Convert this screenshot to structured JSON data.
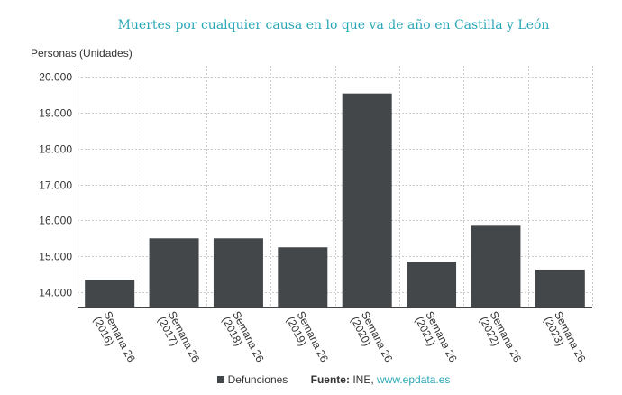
{
  "chart_data": {
    "type": "bar",
    "title": "Muertes por cualquier causa en lo que va de año en Castilla y León",
    "ylabel": "Personas (Unidades)",
    "xlabel": "",
    "categories": [
      "Semana 26 (2016)",
      "Semana 26 (2017)",
      "Semana 26 (2018)",
      "Semana 26 (2019)",
      "Semana 26 (2020)",
      "Semana 26 (2021)",
      "Semana 26 (2022)",
      "Semana 26 (2023)"
    ],
    "category_lines": [
      [
        "Semana 26",
        "(2016)"
      ],
      [
        "Semana 26",
        "(2017)"
      ],
      [
        "Semana 26",
        "(2018)"
      ],
      [
        "Semana 26",
        "(2019)"
      ],
      [
        "Semana 26",
        "(2020)"
      ],
      [
        "Semana 26",
        "(2021)"
      ],
      [
        "Semana 26",
        "(2022)"
      ],
      [
        "Semana 26",
        "(2023)"
      ]
    ],
    "series": [
      {
        "name": "Defunciones",
        "values": [
          14350,
          15500,
          15500,
          15250,
          19530,
          14850,
          15850,
          14630
        ]
      }
    ],
    "ylim": [
      13600,
      20300
    ],
    "yticks": [
      14000,
      15000,
      16000,
      17000,
      18000,
      19000,
      20000
    ],
    "ytick_labels": [
      "14.000",
      "15.000",
      "16.000",
      "17.000",
      "18.000",
      "19.000",
      "20.000"
    ],
    "grid": true,
    "legend_position": "bottom",
    "colors": {
      "bar": "#44474a",
      "title": "#2aa7b6",
      "grid": "#cccccc"
    }
  },
  "footer": {
    "legend_label": "Defunciones",
    "source_label": "Fuente:",
    "source_text": "INE,",
    "source_link": "www.epdata.es"
  }
}
